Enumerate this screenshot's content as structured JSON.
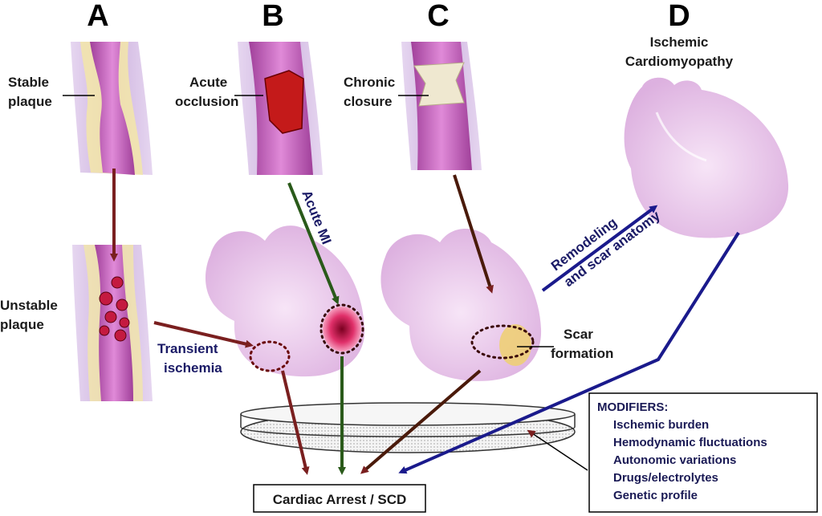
{
  "panels": {
    "a": "A",
    "b": "B",
    "c": "C",
    "d": "D"
  },
  "labels": {
    "stable_plaque": [
      "Stable",
      "plaque"
    ],
    "unstable_plaque": [
      "Unstable",
      "plaque"
    ],
    "acute_occlusion": [
      "Acute",
      "occlusion"
    ],
    "chronic_closure": [
      "Chronic",
      "closure"
    ],
    "ischemic_cardiomyopathy": [
      "Ischemic",
      "Cardiomyopathy"
    ],
    "transient_ischemia": [
      "Transient",
      "ischemia"
    ],
    "acute_mi": "Acute MI",
    "scar_formation": [
      "Scar",
      "formation"
    ],
    "remodeling": [
      "Remodeling",
      "and scar anatomy"
    ],
    "outcome": "Cardiac Arrest / SCD"
  },
  "modifiers": {
    "title": "MODIFIERS:",
    "items": [
      "Ischemic burden",
      "Hemodynamic fluctuations",
      "Autonomic variations",
      "Drugs/electrolytes",
      "Genetic profile"
    ]
  },
  "colors": {
    "vessel_wall": "#d9c4e8",
    "vessel_lumen": "#c870c0",
    "plaque": "#f3e6a8",
    "thrombus": "#c41a1a",
    "heart": "#e9c6ea",
    "arrow_maroon": "#7a1f1f",
    "arrow_green": "#2a5a1a",
    "arrow_navy": "#1a1a8c",
    "scar": "#efd070"
  }
}
